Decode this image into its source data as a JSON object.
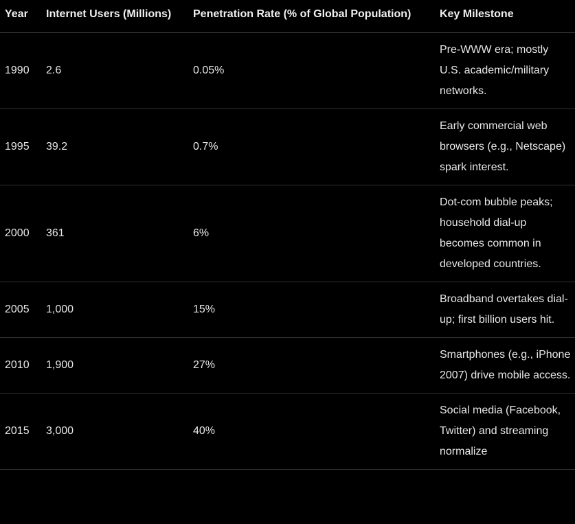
{
  "table": {
    "header": [
      "Year",
      "Internet Users (Millions)",
      "Penetration Rate (% of Global Population)",
      "Key Milestone"
    ],
    "rows": [
      [
        "1990",
        "2.6",
        "0.05%",
        "Pre-WWW era; mostly U.S. academic/military networks."
      ],
      [
        "1995",
        "39.2",
        "0.7%",
        "Early commercial web browsers (e.g., Netscape) spark interest."
      ],
      [
        "2000",
        "361",
        "6%",
        "Dot-com bubble peaks; household dial-up becomes common in developed countries."
      ],
      [
        "2005",
        "1,000",
        "15%",
        "Broadband overtakes dial-up; first billion users hit."
      ],
      [
        "2010",
        "1,900",
        "27%",
        "Smartphones (e.g., iPhone 2007) drive mobile access."
      ],
      [
        "2015",
        "3,000",
        "40%",
        "Social media (Facebook, Twitter) and streaming normalize"
      ]
    ]
  }
}
